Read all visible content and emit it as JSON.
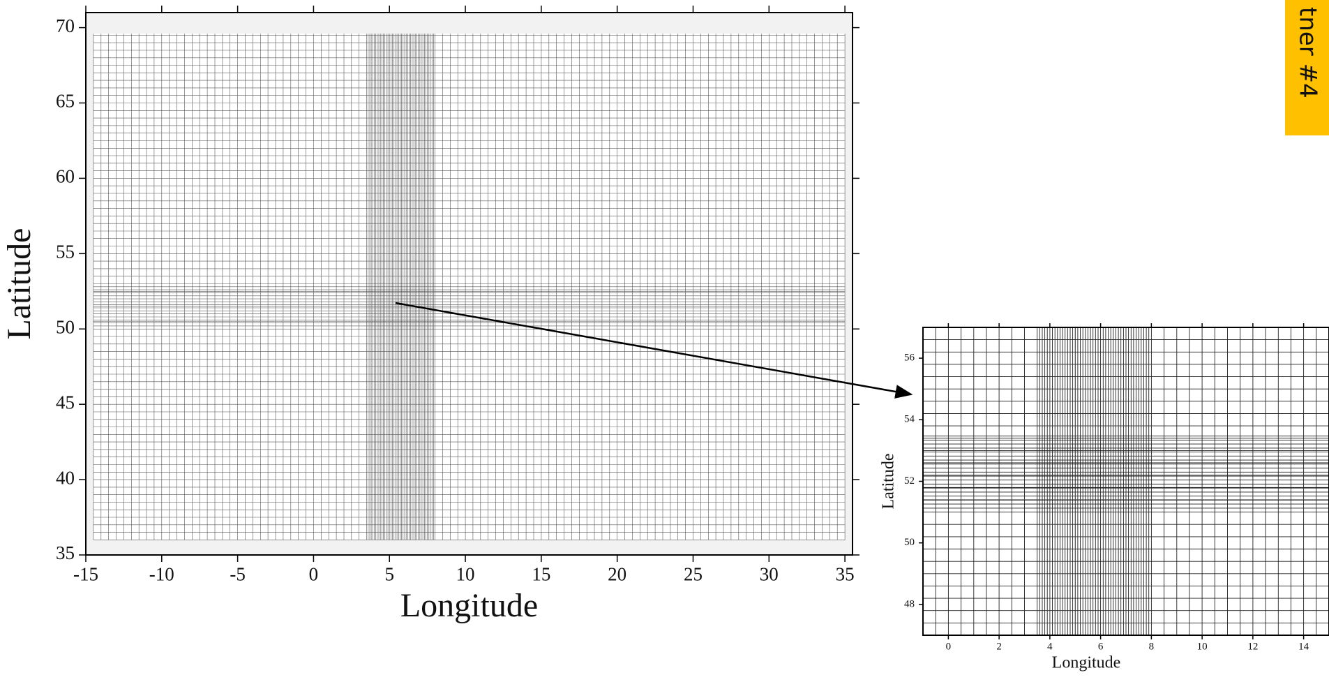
{
  "panels": [
    {
      "xlabel": "Longitude",
      "ylabel": "Latitude",
      "xlim": [
        -15,
        35.5
      ],
      "ylim": [
        35,
        71
      ],
      "xticks": [
        -15,
        -10,
        -5,
        0,
        5,
        10,
        15,
        20,
        25,
        30,
        35
      ],
      "yticks": [
        35,
        40,
        45,
        50,
        55,
        60,
        65,
        70
      ]
    },
    {
      "xlabel": "Longitude",
      "ylabel": "Latitude",
      "xlim": [
        -1,
        15
      ],
      "ylim": [
        47,
        57
      ],
      "xticks": [
        0,
        2,
        4,
        6,
        8,
        10,
        12,
        14
      ],
      "yticks": [
        48,
        50,
        52,
        54,
        56
      ]
    }
  ],
  "tab_label": "tner #4"
}
